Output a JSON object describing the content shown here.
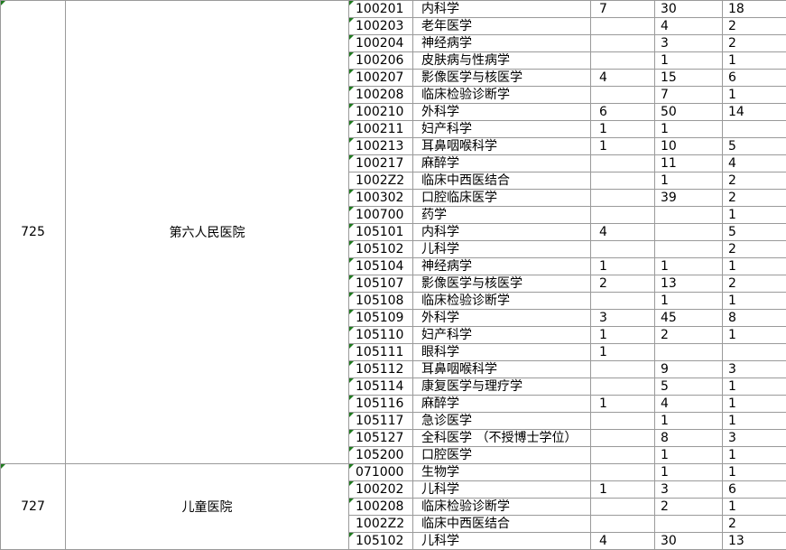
{
  "app": {
    "kind": "spreadsheet-table-fragment"
  },
  "colors": {
    "grid_line": "#9a9a9a",
    "error_flag_green": "#1f7a1f",
    "background": "#ffffff",
    "text": "#000000"
  },
  "table": {
    "sections": [
      {
        "group_code": "725",
        "group_name": "第六人民医院",
        "rows": [
          {
            "code": "100201",
            "major": "内科学",
            "v1": "7",
            "v2": "30",
            "v3": "18"
          },
          {
            "code": "100203",
            "major": "老年医学",
            "v1": "",
            "v2": "4",
            "v3": "2"
          },
          {
            "code": "100204",
            "major": "神经病学",
            "v1": "",
            "v2": "3",
            "v3": "2"
          },
          {
            "code": "100206",
            "major": "皮肤病与性病学",
            "v1": "",
            "v2": "1",
            "v3": "1"
          },
          {
            "code": "100207",
            "major": "影像医学与核医学",
            "v1": "4",
            "v2": "15",
            "v3": "6"
          },
          {
            "code": "100208",
            "major": "临床检验诊断学",
            "v1": "",
            "v2": "7",
            "v3": "1"
          },
          {
            "code": "100210",
            "major": "外科学",
            "v1": "6",
            "v2": "50",
            "v3": "14"
          },
          {
            "code": "100211",
            "major": "妇产科学",
            "v1": "1",
            "v2": "1",
            "v3": ""
          },
          {
            "code": "100213",
            "major": "耳鼻咽喉科学",
            "v1": "1",
            "v2": "10",
            "v3": "5"
          },
          {
            "code": "100217",
            "major": "麻醉学",
            "v1": "",
            "v2": "11",
            "v3": "4"
          },
          {
            "code": "1002Z2",
            "major": "临床中西医结合",
            "v1": "",
            "v2": "1",
            "v3": "2"
          },
          {
            "code": "100302",
            "major": "口腔临床医学",
            "v1": "",
            "v2": "39",
            "v3": "2"
          },
          {
            "code": "100700",
            "major": "药学",
            "v1": "",
            "v2": "",
            "v3": "1"
          },
          {
            "code": "105101",
            "major": "内科学",
            "v1": "4",
            "v2": "",
            "v3": "5"
          },
          {
            "code": "105102",
            "major": "儿科学",
            "v1": "",
            "v2": "",
            "v3": "2"
          },
          {
            "code": "105104",
            "major": "神经病学",
            "v1": "1",
            "v2": "1",
            "v3": "1"
          },
          {
            "code": "105107",
            "major": "影像医学与核医学",
            "v1": "2",
            "v2": "13",
            "v3": "2"
          },
          {
            "code": "105108",
            "major": "临床检验诊断学",
            "v1": "",
            "v2": "1",
            "v3": "1"
          },
          {
            "code": "105109",
            "major": "外科学",
            "v1": "3",
            "v2": "45",
            "v3": "8"
          },
          {
            "code": "105110",
            "major": "妇产科学",
            "v1": "1",
            "v2": "2",
            "v3": "1"
          },
          {
            "code": "105111",
            "major": "眼科学",
            "v1": "1",
            "v2": "",
            "v3": ""
          },
          {
            "code": "105112",
            "major": "耳鼻咽喉科学",
            "v1": "",
            "v2": "9",
            "v3": "3"
          },
          {
            "code": "105114",
            "major": "康复医学与理疗学",
            "v1": "",
            "v2": "5",
            "v3": "1"
          },
          {
            "code": "105116",
            "major": "麻醉学",
            "v1": "1",
            "v2": "4",
            "v3": "1"
          },
          {
            "code": "105117",
            "major": "急诊医学",
            "v1": "",
            "v2": "1",
            "v3": "1"
          },
          {
            "code": "105127",
            "major": "全科医学 （不授博士学位）",
            "v1": "",
            "v2": "8",
            "v3": "3"
          },
          {
            "code": "105200",
            "major": "口腔医学",
            "v1": "",
            "v2": "1",
            "v3": "1"
          }
        ]
      },
      {
        "group_code": "727",
        "group_name": "儿童医院",
        "rows": [
          {
            "code": "071000",
            "major": "生物学",
            "v1": "",
            "v2": "1",
            "v3": "1"
          },
          {
            "code": "100202",
            "major": "儿科学",
            "v1": "1",
            "v2": "3",
            "v3": "6"
          },
          {
            "code": "100208",
            "major": "临床检验诊断学",
            "v1": "",
            "v2": "2",
            "v3": "1"
          },
          {
            "code": "1002Z2",
            "major": "临床中西医结合",
            "v1": "",
            "v2": "",
            "v3": "2"
          },
          {
            "code": "105102",
            "major": "儿科学",
            "v1": "4",
            "v2": "30",
            "v3": "13"
          }
        ]
      }
    ]
  }
}
